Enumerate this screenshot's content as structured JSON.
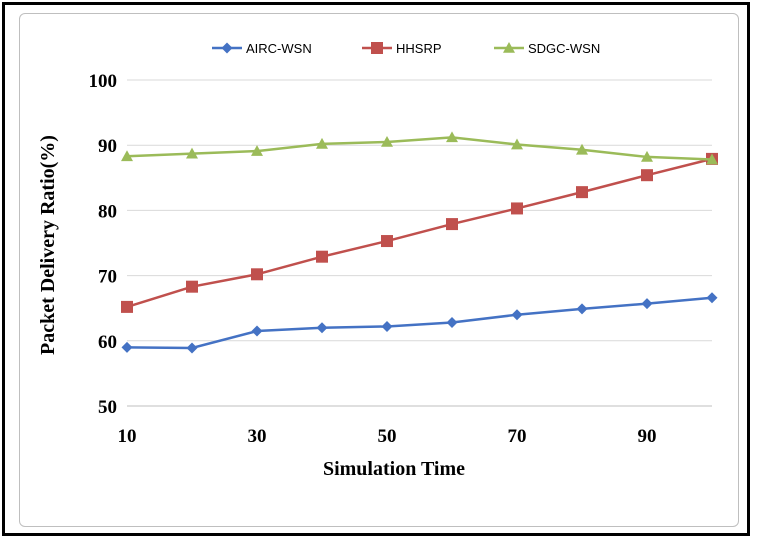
{
  "chart_data": {
    "type": "line",
    "title": "",
    "xlabel": "Simulation Time",
    "ylabel": "Packet Delivery Ratio(%)",
    "x": [
      10,
      20,
      30,
      40,
      50,
      60,
      70,
      80,
      90,
      100
    ],
    "xlim": [
      10,
      100
    ],
    "xticks": [
      10,
      30,
      50,
      70,
      90
    ],
    "ylim": [
      50,
      100
    ],
    "yticks": [
      50,
      60,
      70,
      80,
      90,
      100
    ],
    "grid": true,
    "legend_position": "top",
    "series": [
      {
        "name": "AIRC-WSN",
        "color": "#4472c4",
        "marker": "diamond",
        "values": [
          59,
          58.9,
          61.5,
          62,
          62.2,
          62.8,
          64,
          64.9,
          65.7,
          66.6
        ]
      },
      {
        "name": "HHSRP",
        "color": "#c0504d",
        "marker": "square",
        "values": [
          65.2,
          68.3,
          70.2,
          72.9,
          75.3,
          77.9,
          80.3,
          82.8,
          85.4,
          87.9
        ]
      },
      {
        "name": "SDGC-WSN",
        "color": "#9bbb59",
        "marker": "triangle",
        "values": [
          88.3,
          88.7,
          89.1,
          90.2,
          90.5,
          91.2,
          90.1,
          89.3,
          88.2,
          87.8
        ]
      }
    ]
  }
}
